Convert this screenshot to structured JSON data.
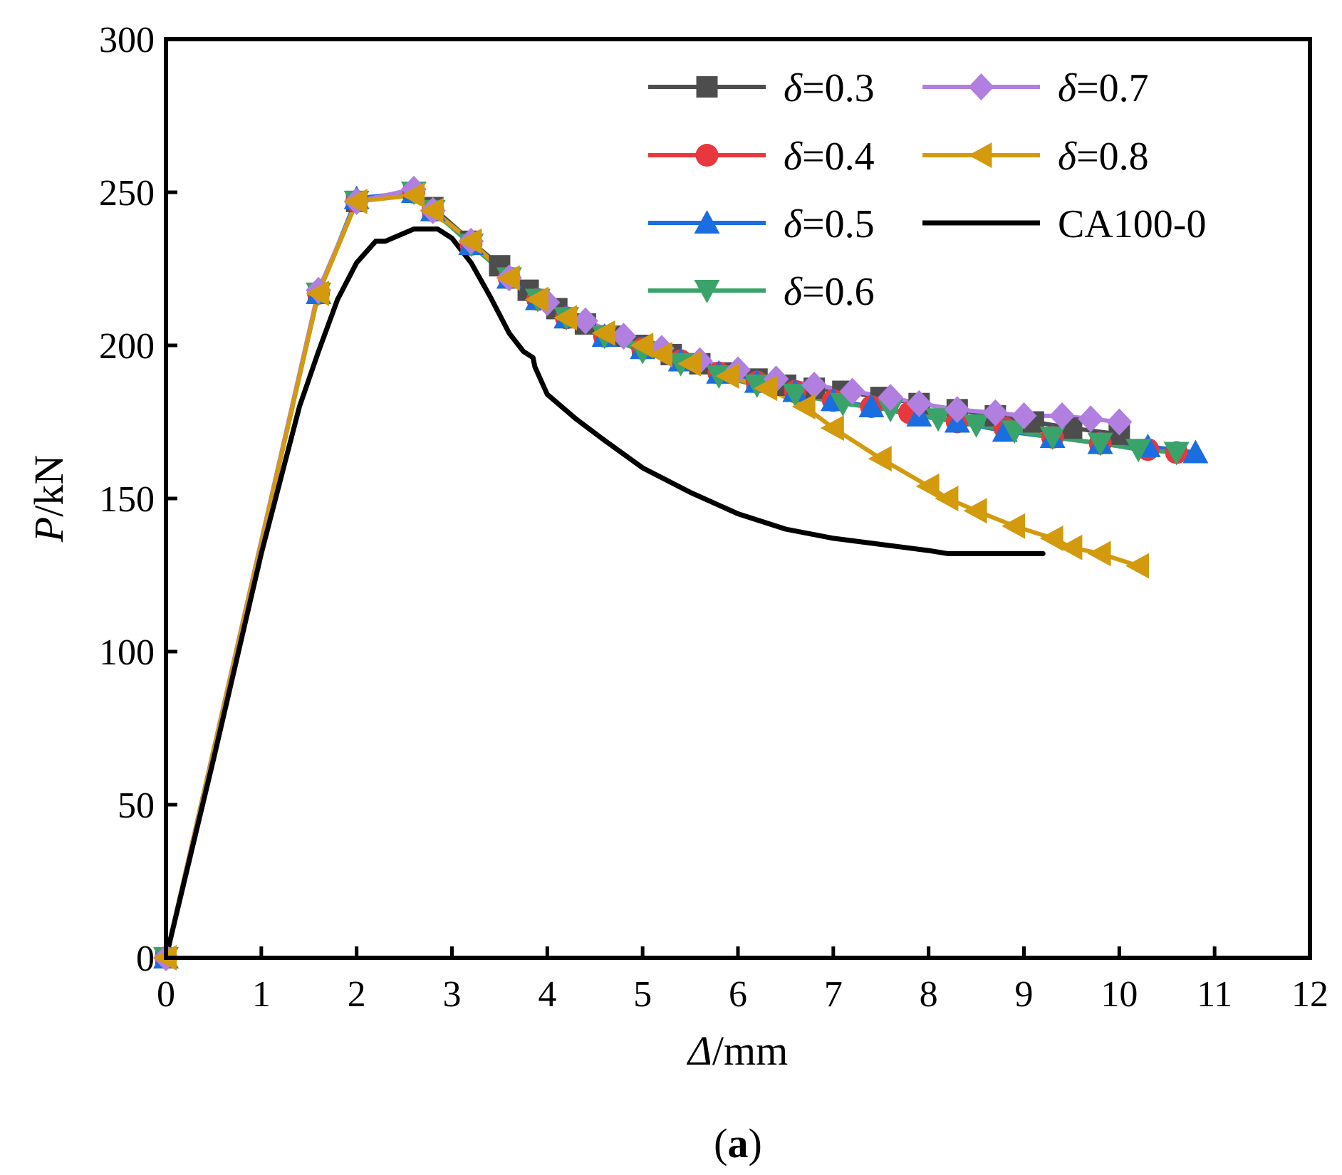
{
  "chart_data": {
    "type": "line",
    "xlabel_symbol": "Δ",
    "xlabel_unit": "/mm",
    "ylabel_symbol": "P",
    "ylabel_unit": "/kN",
    "xlim": [
      0,
      12
    ],
    "ylim": [
      0,
      300
    ],
    "xticks": [
      "0",
      "1",
      "2",
      "3",
      "4",
      "5",
      "6",
      "7",
      "8",
      "9",
      "10",
      "11",
      "12"
    ],
    "yticks": [
      "0",
      "50",
      "100",
      "150",
      "200",
      "250",
      "300"
    ],
    "grid": false,
    "legend_position": "top-right",
    "caption": {
      "open": "(",
      "label": "a",
      "close": ")"
    },
    "series": [
      {
        "name": "δ=0.3",
        "symbol": "δ",
        "value_text": "=0.3",
        "color": "#4d4d4d",
        "marker": "square",
        "x": [
          0,
          1.6,
          2.0,
          2.6,
          2.8,
          3.2,
          3.5,
          3.8,
          4.1,
          4.4,
          4.7,
          5.0,
          5.3,
          5.6,
          5.9,
          6.2,
          6.5,
          6.8,
          7.1,
          7.5,
          7.9,
          8.3,
          8.7,
          9.1,
          9.5,
          10.0
        ],
        "y": [
          0,
          217,
          247,
          250,
          245,
          234,
          226,
          218,
          212,
          207,
          203,
          200,
          197,
          194,
          191,
          189,
          187,
          186,
          185,
          183,
          181,
          179,
          177,
          175,
          173,
          171
        ]
      },
      {
        "name": "δ=0.4",
        "symbol": "δ",
        "value_text": "=0.4",
        "color": "#e8383d",
        "marker": "circle",
        "x": [
          0,
          1.6,
          2.0,
          2.6,
          2.8,
          3.2,
          3.6,
          3.9,
          4.2,
          4.6,
          5.0,
          5.4,
          5.8,
          6.2,
          6.6,
          7.0,
          7.4,
          7.8,
          8.3,
          8.8,
          9.3,
          9.8,
          10.3,
          10.6
        ],
        "y": [
          0,
          217,
          247,
          250,
          244,
          233,
          222,
          215,
          209,
          203,
          199,
          195,
          191,
          188,
          185,
          182,
          180,
          178,
          175,
          173,
          170,
          168,
          166,
          165
        ]
      },
      {
        "name": "δ=0.5",
        "symbol": "δ",
        "value_text": "=0.5",
        "color": "#1a6ee0",
        "marker": "triangle-up",
        "x": [
          0,
          1.6,
          2.0,
          2.6,
          2.8,
          3.2,
          3.6,
          3.9,
          4.2,
          4.6,
          5.0,
          5.4,
          5.8,
          6.2,
          6.6,
          7.0,
          7.4,
          7.9,
          8.3,
          8.8,
          9.3,
          9.8,
          10.3,
          10.8
        ],
        "y": [
          0,
          217,
          248,
          250,
          244,
          233,
          222,
          215,
          209,
          203,
          199,
          195,
          191,
          188,
          185,
          182,
          180,
          177,
          175,
          172,
          170,
          168,
          167,
          165
        ]
      },
      {
        "name": "δ=0.6",
        "symbol": "δ",
        "value_text": "=0.6",
        "color": "#3aa36a",
        "marker": "triangle-down",
        "x": [
          0,
          1.6,
          2.0,
          2.6,
          2.8,
          3.2,
          3.6,
          3.9,
          4.2,
          4.6,
          5.0,
          5.4,
          5.8,
          6.2,
          6.6,
          7.1,
          7.6,
          8.1,
          8.5,
          8.9,
          9.3,
          9.8,
          10.2,
          10.6
        ],
        "y": [
          0,
          217,
          247,
          250,
          244,
          233,
          222,
          215,
          209,
          203,
          198,
          194,
          190,
          187,
          184,
          181,
          179,
          176,
          174,
          172,
          170,
          168,
          166,
          165
        ]
      },
      {
        "name": "δ=0.7",
        "symbol": "δ",
        "value_text": "=0.7",
        "color": "#b07fe0",
        "marker": "diamond",
        "x": [
          0,
          1.6,
          2.0,
          2.6,
          2.8,
          3.2,
          3.6,
          4.0,
          4.4,
          4.8,
          5.2,
          5.6,
          6.0,
          6.4,
          6.8,
          7.2,
          7.6,
          7.9,
          8.3,
          8.7,
          9.0,
          9.4,
          9.7,
          10.0
        ],
        "y": [
          0,
          218,
          247,
          251,
          244,
          234,
          222,
          214,
          208,
          203,
          199,
          195,
          192,
          189,
          187,
          185,
          183,
          181,
          179,
          178,
          177,
          177,
          176,
          175
        ]
      },
      {
        "name": "δ=0.8",
        "symbol": "δ",
        "value_text": "=0.8",
        "color": "#d49a0e",
        "marker": "triangle-left",
        "x": [
          0,
          1.6,
          2.0,
          2.6,
          2.8,
          3.2,
          3.6,
          3.9,
          4.2,
          4.6,
          5.0,
          5.2,
          5.5,
          5.9,
          6.3,
          6.7,
          7.0,
          7.5,
          8.0,
          8.2,
          8.5,
          8.9,
          9.3,
          9.5,
          9.8,
          10.2
        ],
        "y": [
          0,
          217,
          247,
          249,
          244,
          234,
          222,
          215,
          209,
          204,
          200,
          197,
          194,
          190,
          186,
          180,
          173,
          163,
          154,
          150,
          146,
          141,
          137,
          134,
          132,
          128
        ]
      },
      {
        "name": "CA100-0",
        "symbol": "",
        "value_text": "CA100-0",
        "color": "#000000",
        "marker": "none",
        "x": [
          0,
          0.5,
          1.0,
          1.4,
          1.6,
          1.8,
          2.0,
          2.2,
          2.3,
          2.45,
          2.6,
          2.7,
          2.85,
          3.0,
          3.2,
          3.4,
          3.6,
          3.75,
          3.85,
          3.87,
          4.0,
          4.3,
          4.6,
          5.0,
          5.5,
          6.0,
          6.5,
          7.0,
          7.5,
          8.0,
          8.2,
          8.6,
          9.0,
          9.2
        ],
        "y": [
          0,
          65,
          132,
          180,
          198,
          215,
          227,
          234,
          234,
          236,
          238,
          238,
          238,
          235,
          227,
          216,
          204,
          198,
          196,
          193,
          184,
          176,
          169,
          160,
          152,
          145,
          140,
          137,
          135,
          133,
          132,
          132,
          132,
          132
        ]
      }
    ]
  }
}
